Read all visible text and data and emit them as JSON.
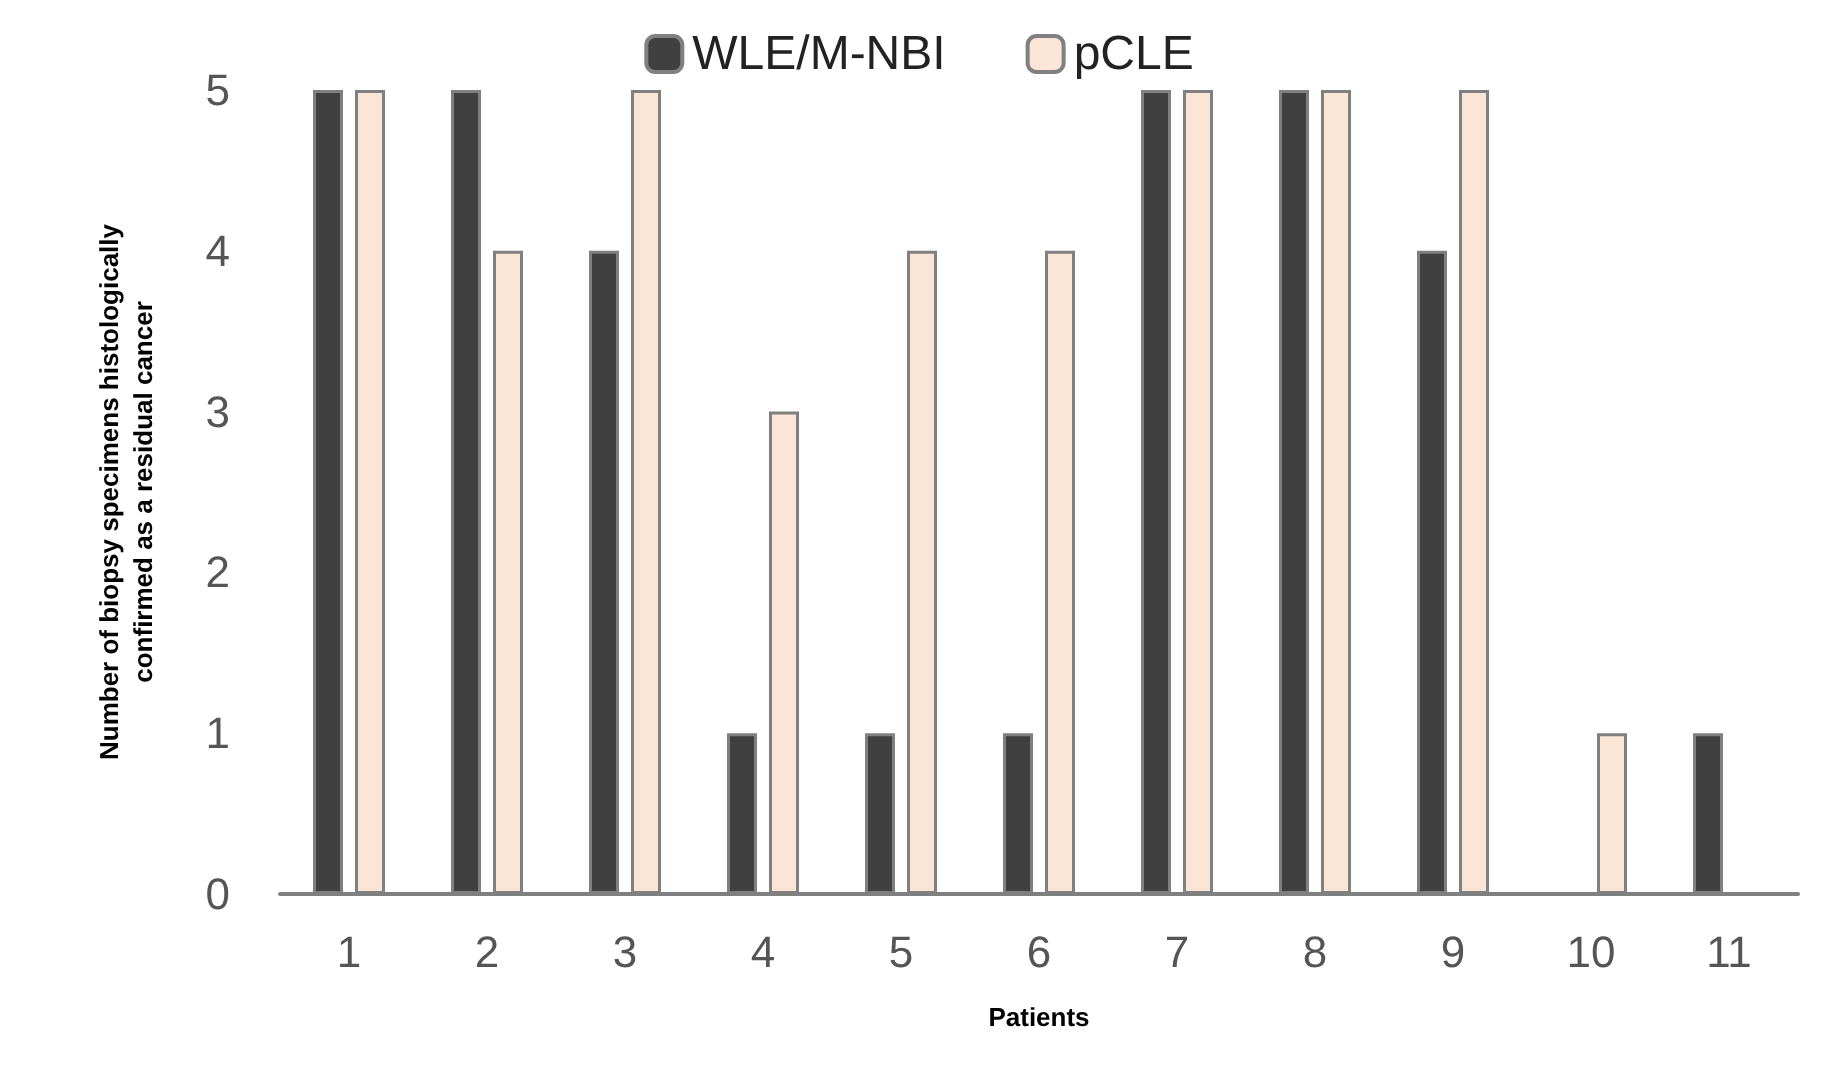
{
  "chart_data": {
    "type": "bar",
    "xlabel": "Patients",
    "ylabel": "Number of biopsy specimens histologically\nconfirmed as a residual cancer",
    "categories": [
      "1",
      "2",
      "3",
      "4",
      "5",
      "6",
      "7",
      "8",
      "9",
      "10",
      "11"
    ],
    "series": [
      {
        "name": "WLE/M-NBI",
        "color": "#404040",
        "values": [
          5,
          5,
          4,
          1,
          1,
          1,
          5,
          5,
          4,
          0,
          1
        ]
      },
      {
        "name": "pCLE",
        "color": "#fbe5d6",
        "values": [
          5,
          4,
          5,
          3,
          4,
          4,
          5,
          5,
          5,
          1,
          0
        ]
      }
    ],
    "ylim": [
      0,
      5
    ],
    "yticks": [
      0,
      1,
      2,
      3,
      4,
      5
    ],
    "grid": false,
    "legend": "top"
  }
}
